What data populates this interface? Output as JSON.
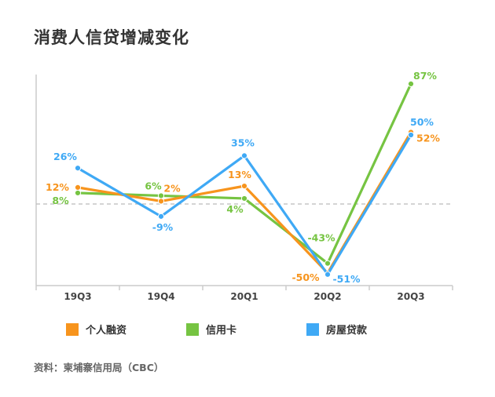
{
  "title": "消费人信贷增减变化",
  "source": "资料：柬埔寨信用局（CBC）",
  "colors": {
    "personal": "#f7941d",
    "credit": "#76c442",
    "housing": "#3fa9f5",
    "axis": "#cccccc",
    "zero": "#bbbbbb"
  },
  "chart_data": {
    "type": "line",
    "title": "消费人信贷增减变化",
    "categories": [
      "19Q3",
      "19Q4",
      "20Q1",
      "20Q2",
      "20Q3"
    ],
    "ylim": [
      -60,
      95
    ],
    "zero_line": "dashed",
    "series": [
      {
        "name": "个人融资",
        "color": "#f7941d",
        "values": [
          12,
          2,
          13,
          -50,
          52
        ],
        "labels": [
          "12%",
          "2%",
          "13%",
          "-50%",
          "52%"
        ]
      },
      {
        "name": "信用卡",
        "color": "#76c442",
        "values": [
          8,
          6,
          4,
          -43,
          87
        ],
        "labels": [
          "8%",
          "6%",
          "4%",
          "-43%",
          "87%"
        ]
      },
      {
        "name": "房屋贷款",
        "color": "#3fa9f5",
        "values": [
          26,
          -9,
          35,
          -51,
          50
        ],
        "labels": [
          "26%",
          "-9%",
          "35%",
          "-51%",
          "50%"
        ]
      }
    ],
    "legend_position": "bottom"
  }
}
